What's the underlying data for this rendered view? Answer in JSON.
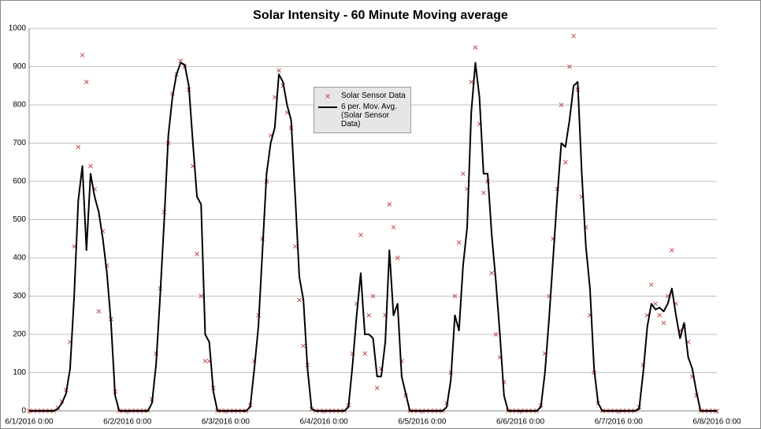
{
  "chart_data": {
    "type": "scatter",
    "title": "Solar Intensity - 60 Minute Moving average",
    "x": [
      "6/1/2016 0:00",
      "6/1/2016 1:00",
      "6/1/2016 2:00",
      "6/1/2016 3:00",
      "6/1/2016 4:00",
      "6/1/2016 5:00",
      "6/1/2016 6:00",
      "6/1/2016 7:00",
      "6/1/2016 8:00",
      "6/1/2016 9:00",
      "6/1/2016 10:00",
      "6/1/2016 11:00",
      "6/1/2016 12:00",
      "6/1/2016 13:00",
      "6/1/2016 14:00",
      "6/1/2016 15:00",
      "6/1/2016 16:00",
      "6/1/2016 17:00",
      "6/1/2016 18:00",
      "6/1/2016 19:00",
      "6/1/2016 20:00",
      "6/1/2016 21:00",
      "6/1/2016 22:00",
      "6/1/2016 23:00",
      "6/2/2016 0:00",
      "6/2/2016 1:00",
      "6/2/2016 2:00",
      "6/2/2016 3:00",
      "6/2/2016 4:00",
      "6/2/2016 5:00",
      "6/2/2016 6:00",
      "6/2/2016 7:00",
      "6/2/2016 8:00",
      "6/2/2016 9:00",
      "6/2/2016 10:00",
      "6/2/2016 11:00",
      "6/2/2016 12:00",
      "6/2/2016 13:00",
      "6/2/2016 14:00",
      "6/2/2016 15:00",
      "6/2/2016 16:00",
      "6/2/2016 17:00",
      "6/2/2016 18:00",
      "6/2/2016 19:00",
      "6/2/2016 20:00",
      "6/2/2016 21:00",
      "6/2/2016 22:00",
      "6/2/2016 23:00",
      "6/3/2016 0:00",
      "6/3/2016 1:00",
      "6/3/2016 2:00",
      "6/3/2016 3:00",
      "6/3/2016 4:00",
      "6/3/2016 5:00",
      "6/3/2016 6:00",
      "6/3/2016 7:00",
      "6/3/2016 8:00",
      "6/3/2016 9:00",
      "6/3/2016 10:00",
      "6/3/2016 11:00",
      "6/3/2016 12:00",
      "6/3/2016 13:00",
      "6/3/2016 14:00",
      "6/3/2016 15:00",
      "6/3/2016 16:00",
      "6/3/2016 17:00",
      "6/3/2016 18:00",
      "6/3/2016 19:00",
      "6/3/2016 20:00",
      "6/3/2016 21:00",
      "6/3/2016 22:00",
      "6/3/2016 23:00",
      "6/4/2016 0:00",
      "6/4/2016 1:00",
      "6/4/2016 2:00",
      "6/4/2016 3:00",
      "6/4/2016 4:00",
      "6/4/2016 5:00",
      "6/4/2016 6:00",
      "6/4/2016 7:00",
      "6/4/2016 8:00",
      "6/4/2016 9:00",
      "6/4/2016 10:00",
      "6/4/2016 11:00",
      "6/4/2016 12:00",
      "6/4/2016 13:00",
      "6/4/2016 14:00",
      "6/4/2016 15:00",
      "6/4/2016 16:00",
      "6/4/2016 17:00",
      "6/4/2016 18:00",
      "6/4/2016 19:00",
      "6/4/2016 20:00",
      "6/4/2016 21:00",
      "6/4/2016 22:00",
      "6/4/2016 23:00",
      "6/5/2016 0:00",
      "6/5/2016 1:00",
      "6/5/2016 2:00",
      "6/5/2016 3:00",
      "6/5/2016 4:00",
      "6/5/2016 5:00",
      "6/5/2016 6:00",
      "6/5/2016 7:00",
      "6/5/2016 8:00",
      "6/5/2016 9:00",
      "6/5/2016 10:00",
      "6/5/2016 11:00",
      "6/5/2016 12:00",
      "6/5/2016 13:00",
      "6/5/2016 14:00",
      "6/5/2016 15:00",
      "6/5/2016 16:00",
      "6/5/2016 17:00",
      "6/5/2016 18:00",
      "6/5/2016 19:00",
      "6/5/2016 20:00",
      "6/5/2016 21:00",
      "6/5/2016 22:00",
      "6/5/2016 23:00",
      "6/6/2016 0:00",
      "6/6/2016 1:00",
      "6/6/2016 2:00",
      "6/6/2016 3:00",
      "6/6/2016 4:00",
      "6/6/2016 5:00",
      "6/6/2016 6:00",
      "6/6/2016 7:00",
      "6/6/2016 8:00",
      "6/6/2016 9:00",
      "6/6/2016 10:00",
      "6/6/2016 11:00",
      "6/6/2016 12:00",
      "6/6/2016 13:00",
      "6/6/2016 14:00",
      "6/6/2016 15:00",
      "6/6/2016 16:00",
      "6/6/2016 17:00",
      "6/6/2016 18:00",
      "6/6/2016 19:00",
      "6/6/2016 20:00",
      "6/6/2016 21:00",
      "6/6/2016 22:00",
      "6/6/2016 23:00",
      "6/7/2016 0:00",
      "6/7/2016 1:00",
      "6/7/2016 2:00",
      "6/7/2016 3:00",
      "6/7/2016 4:00",
      "6/7/2016 5:00",
      "6/7/2016 6:00",
      "6/7/2016 7:00",
      "6/7/2016 8:00",
      "6/7/2016 9:00",
      "6/7/2016 10:00",
      "6/7/2016 11:00",
      "6/7/2016 12:00",
      "6/7/2016 13:00",
      "6/7/2016 14:00",
      "6/7/2016 15:00",
      "6/7/2016 16:00",
      "6/7/2016 17:00",
      "6/7/2016 18:00",
      "6/7/2016 19:00",
      "6/7/2016 20:00",
      "6/7/2016 21:00",
      "6/7/2016 22:00",
      "6/7/2016 23:00",
      "6/8/2016 0:00"
    ],
    "series": [
      {
        "name": "Solar Sensor Data",
        "type": "scatter",
        "color": "#c0504d",
        "values": [
          0,
          0,
          0,
          0,
          0,
          0,
          0,
          8,
          25,
          55,
          180,
          430,
          690,
          930,
          860,
          640,
          580,
          260,
          470,
          380,
          240,
          50,
          0,
          0,
          0,
          0,
          0,
          0,
          0,
          0,
          30,
          150,
          320,
          520,
          700,
          830,
          880,
          915,
          900,
          840,
          640,
          410,
          300,
          130,
          130,
          60,
          0,
          0,
          0,
          0,
          0,
          0,
          0,
          0,
          15,
          130,
          250,
          450,
          600,
          720,
          820,
          890,
          850,
          780,
          740,
          430,
          290,
          170,
          120,
          5,
          0,
          0,
          0,
          0,
          0,
          0,
          0,
          0,
          15,
          150,
          280,
          460,
          150,
          250,
          300,
          60,
          110,
          250,
          540,
          480,
          400,
          130,
          40,
          0,
          0,
          0,
          0,
          0,
          0,
          0,
          0,
          0,
          20,
          100,
          300,
          440,
          620,
          580,
          860,
          950,
          750,
          570,
          600,
          360,
          200,
          140,
          75,
          0,
          0,
          0,
          0,
          0,
          0,
          0,
          0,
          15,
          150,
          300,
          450,
          580,
          800,
          650,
          900,
          980,
          840,
          560,
          480,
          250,
          100,
          20,
          0,
          0,
          0,
          0,
          0,
          0,
          0,
          0,
          0,
          10,
          120,
          250,
          330,
          280,
          250,
          230,
          300,
          420,
          280,
          210,
          220,
          180,
          90,
          40,
          0,
          0,
          0,
          0,
          0
        ]
      },
      {
        "name": "6 per. Mov. Avg. (Solar Sensor Data)",
        "type": "line",
        "color": "#000000",
        "values": [
          0,
          0,
          0,
          0,
          0,
          0,
          0,
          5,
          20,
          45,
          110,
          300,
          550,
          640,
          420,
          620,
          560,
          520,
          450,
          360,
          230,
          40,
          0,
          0,
          0,
          0,
          0,
          0,
          0,
          0,
          20,
          120,
          300,
          500,
          720,
          820,
          880,
          910,
          905,
          850,
          700,
          560,
          540,
          200,
          180,
          50,
          0,
          0,
          0,
          0,
          0,
          0,
          0,
          0,
          10,
          110,
          220,
          420,
          620,
          700,
          740,
          880,
          860,
          800,
          760,
          560,
          350,
          290,
          110,
          5,
          0,
          0,
          0,
          0,
          0,
          0,
          0,
          0,
          10,
          120,
          250,
          360,
          200,
          200,
          190,
          90,
          90,
          180,
          420,
          250,
          280,
          90,
          45,
          0,
          0,
          0,
          0,
          0,
          0,
          0,
          0,
          0,
          10,
          80,
          250,
          210,
          380,
          480,
          780,
          910,
          820,
          620,
          620,
          460,
          340,
          200,
          40,
          0,
          0,
          0,
          0,
          0,
          0,
          0,
          0,
          10,
          100,
          240,
          400,
          560,
          700,
          690,
          760,
          850,
          860,
          620,
          430,
          320,
          110,
          20,
          0,
          0,
          0,
          0,
          0,
          0,
          0,
          0,
          0,
          5,
          100,
          220,
          280,
          265,
          270,
          260,
          280,
          320,
          250,
          190,
          230,
          140,
          110,
          50,
          0,
          0,
          0,
          0,
          0
        ]
      }
    ],
    "xlim": [
      "6/1/2016 0:00",
      "6/8/2016 0:00"
    ],
    "xticks": [
      "6/1/2016 0:00",
      "6/2/2016 0:00",
      "6/3/2016 0:00",
      "6/4/2016 0:00",
      "6/5/2016 0:00",
      "6/6/2016 0:00",
      "6/7/2016 0:00",
      "6/8/2016 0:00"
    ],
    "ylim": [
      0,
      1000
    ],
    "yticks": [
      0,
      100,
      200,
      300,
      400,
      500,
      600,
      700,
      800,
      900,
      1000
    ],
    "grid": true
  }
}
